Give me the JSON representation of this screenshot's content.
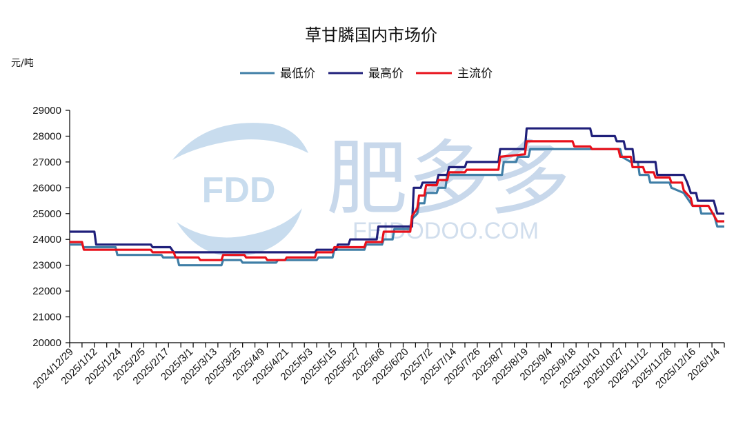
{
  "chart_data": {
    "type": "line",
    "title": "草甘膦国内市场价",
    "unit_label": "元/吨",
    "ylim": [
      20000,
      29000
    ],
    "yticks": [
      20000,
      21000,
      22000,
      23000,
      24000,
      25000,
      26000,
      27000,
      28000,
      29000
    ],
    "x_start": "2024-12-29",
    "x_end": "2026-01-04",
    "xticks": [
      "2024/12/29",
      "2025/1/12",
      "2025/1/24",
      "2025/2/5",
      "2025/2/17",
      "2025/3/1",
      "2025/3/13",
      "2025/3/25",
      "2025/4/9",
      "2025/4/21",
      "2025/5/3",
      "2025/5/15",
      "2025/5/27",
      "2025/6/8",
      "2025/6/20",
      "2025/7/2",
      "2025/7/14",
      "2025/7/26",
      "2025/8/7",
      "2025/8/19",
      "2025/9/4",
      "2025/9/18",
      "2025/10/10",
      "2025/10/27",
      "2025/11/12",
      "2025/11/28",
      "2025/12/16",
      "2026/1/4"
    ],
    "legend_position": "top-center",
    "grid": false,
    "watermark": {
      "logo_text": "FDD",
      "brand": "肥多多",
      "site": "FEIDODOO.COM"
    },
    "series": [
      {
        "name": "最低价",
        "color": "#3F7EA6",
        "points": [
          [
            "2024-12-29",
            23800
          ],
          [
            "2025-01-05",
            23800
          ],
          [
            "2025-01-06",
            23700
          ],
          [
            "2025-01-24",
            23700
          ],
          [
            "2025-01-25",
            23400
          ],
          [
            "2025-02-19",
            23400
          ],
          [
            "2025-02-20",
            23300
          ],
          [
            "2025-02-28",
            23300
          ],
          [
            "2025-03-01",
            23000
          ],
          [
            "2025-03-25",
            23000
          ],
          [
            "2025-03-26",
            23200
          ],
          [
            "2025-04-05",
            23200
          ],
          [
            "2025-04-06",
            23100
          ],
          [
            "2025-04-25",
            23100
          ],
          [
            "2025-04-26",
            23200
          ],
          [
            "2025-05-18",
            23200
          ],
          [
            "2025-05-19",
            23300
          ],
          [
            "2025-05-27",
            23300
          ],
          [
            "2025-05-28",
            23600
          ],
          [
            "2025-06-14",
            23600
          ],
          [
            "2025-06-15",
            23800
          ],
          [
            "2025-06-24",
            23800
          ],
          [
            "2025-06-25",
            24000
          ],
          [
            "2025-06-30",
            24000
          ],
          [
            "2025-07-01",
            24400
          ],
          [
            "2025-07-10",
            24400
          ],
          [
            "2025-07-11",
            24800
          ],
          [
            "2025-07-14",
            25000
          ],
          [
            "2025-07-15",
            25400
          ],
          [
            "2025-07-18",
            25400
          ],
          [
            "2025-07-19",
            25800
          ],
          [
            "2025-07-25",
            25800
          ],
          [
            "2025-07-26",
            26000
          ],
          [
            "2025-07-30",
            26000
          ],
          [
            "2025-07-31",
            26500
          ],
          [
            "2025-08-31",
            26500
          ],
          [
            "2025-09-01",
            27000
          ],
          [
            "2025-09-08",
            27000
          ],
          [
            "2025-09-09",
            27200
          ],
          [
            "2025-09-15",
            27200
          ],
          [
            "2025-09-16",
            27500
          ],
          [
            "2025-11-06",
            27500
          ],
          [
            "2025-11-07",
            27200
          ],
          [
            "2025-11-12",
            27000
          ],
          [
            "2025-11-16",
            27000
          ],
          [
            "2025-11-17",
            26500
          ],
          [
            "2025-11-22",
            26500
          ],
          [
            "2025-11-23",
            26200
          ],
          [
            "2025-12-04",
            26200
          ],
          [
            "2025-12-05",
            26000
          ],
          [
            "2025-12-12",
            25800
          ],
          [
            "2025-12-17",
            25300
          ],
          [
            "2025-12-21",
            25300
          ],
          [
            "2025-12-22",
            25000
          ],
          [
            "2025-12-29",
            25000
          ],
          [
            "2025-12-31",
            24500
          ],
          [
            "2026-01-04",
            24500
          ]
        ]
      },
      {
        "name": "最高价",
        "color": "#1F1F7A",
        "points": [
          [
            "2024-12-29",
            24300
          ],
          [
            "2025-01-12",
            24300
          ],
          [
            "2025-01-13",
            23800
          ],
          [
            "2025-02-13",
            23800
          ],
          [
            "2025-02-14",
            23700
          ],
          [
            "2025-02-24",
            23700
          ],
          [
            "2025-02-26",
            23500
          ],
          [
            "2025-05-17",
            23500
          ],
          [
            "2025-05-18",
            23600
          ],
          [
            "2025-05-29",
            23600
          ],
          [
            "2025-05-30",
            23800
          ],
          [
            "2025-06-05",
            23800
          ],
          [
            "2025-06-06",
            24000
          ],
          [
            "2025-06-21",
            24000
          ],
          [
            "2025-06-22",
            24500
          ],
          [
            "2025-07-11",
            24500
          ],
          [
            "2025-07-12",
            26000
          ],
          [
            "2025-07-16",
            26000
          ],
          [
            "2025-07-17",
            26200
          ],
          [
            "2025-07-25",
            26200
          ],
          [
            "2025-07-26",
            26500
          ],
          [
            "2025-07-31",
            26500
          ],
          [
            "2025-08-01",
            26800
          ],
          [
            "2025-08-10",
            26800
          ],
          [
            "2025-08-11",
            27000
          ],
          [
            "2025-08-29",
            27000
          ],
          [
            "2025-08-30",
            27500
          ],
          [
            "2025-09-13",
            27500
          ],
          [
            "2025-09-14",
            28300
          ],
          [
            "2025-10-20",
            28300
          ],
          [
            "2025-10-21",
            28000
          ],
          [
            "2025-11-03",
            28000
          ],
          [
            "2025-11-04",
            27800
          ],
          [
            "2025-11-08",
            27800
          ],
          [
            "2025-11-09",
            27500
          ],
          [
            "2025-11-13",
            27500
          ],
          [
            "2025-11-14",
            27000
          ],
          [
            "2025-11-26",
            27000
          ],
          [
            "2025-11-27",
            26500
          ],
          [
            "2025-12-12",
            26500
          ],
          [
            "2025-12-14",
            26200
          ],
          [
            "2025-12-16",
            25800
          ],
          [
            "2025-12-19",
            25800
          ],
          [
            "2025-12-20",
            25500
          ],
          [
            "2025-12-29",
            25500
          ],
          [
            "2025-12-31",
            25000
          ],
          [
            "2026-01-04",
            25000
          ]
        ]
      },
      {
        "name": "主流价",
        "color": "#E8101A",
        "points": [
          [
            "2024-12-29",
            23900
          ],
          [
            "2025-01-05",
            23900
          ],
          [
            "2025-01-06",
            23600
          ],
          [
            "2025-02-13",
            23600
          ],
          [
            "2025-02-14",
            23500
          ],
          [
            "2025-02-26",
            23500
          ],
          [
            "2025-02-27",
            23300
          ],
          [
            "2025-03-12",
            23300
          ],
          [
            "2025-03-13",
            23200
          ],
          [
            "2025-03-25",
            23200
          ],
          [
            "2025-03-26",
            23400
          ],
          [
            "2025-04-07",
            23400
          ],
          [
            "2025-04-08",
            23300
          ],
          [
            "2025-04-19",
            23300
          ],
          [
            "2025-04-20",
            23200
          ],
          [
            "2025-04-30",
            23200
          ],
          [
            "2025-05-01",
            23300
          ],
          [
            "2025-05-17",
            23300
          ],
          [
            "2025-05-18",
            23500
          ],
          [
            "2025-05-27",
            23500
          ],
          [
            "2025-05-28",
            23700
          ],
          [
            "2025-06-14",
            23700
          ],
          [
            "2025-06-15",
            23900
          ],
          [
            "2025-06-24",
            23900
          ],
          [
            "2025-06-25",
            24300
          ],
          [
            "2025-07-10",
            24300
          ],
          [
            "2025-07-11",
            24900
          ],
          [
            "2025-07-14",
            25200
          ],
          [
            "2025-07-15",
            25700
          ],
          [
            "2025-07-18",
            25700
          ],
          [
            "2025-07-19",
            26100
          ],
          [
            "2025-07-25",
            26100
          ],
          [
            "2025-07-26",
            26300
          ],
          [
            "2025-07-31",
            26300
          ],
          [
            "2025-08-01",
            26600
          ],
          [
            "2025-08-10",
            26600
          ],
          [
            "2025-08-11",
            26700
          ],
          [
            "2025-08-29",
            26700
          ],
          [
            "2025-08-30",
            27200
          ],
          [
            "2025-09-13",
            27300
          ],
          [
            "2025-09-14",
            27800
          ],
          [
            "2025-10-10",
            27800
          ],
          [
            "2025-10-11",
            27600
          ],
          [
            "2025-10-20",
            27600
          ],
          [
            "2025-10-21",
            27500
          ],
          [
            "2025-11-05",
            27500
          ],
          [
            "2025-11-06",
            27200
          ],
          [
            "2025-11-12",
            27200
          ],
          [
            "2025-11-13",
            26800
          ],
          [
            "2025-11-19",
            26800
          ],
          [
            "2025-11-20",
            26600
          ],
          [
            "2025-11-25",
            26600
          ],
          [
            "2025-11-26",
            26400
          ],
          [
            "2025-12-04",
            26400
          ],
          [
            "2025-12-05",
            26200
          ],
          [
            "2025-12-11",
            26200
          ],
          [
            "2025-12-12",
            25900
          ],
          [
            "2025-12-16",
            25600
          ],
          [
            "2025-12-17",
            25300
          ],
          [
            "2025-12-26",
            25300
          ],
          [
            "2025-12-31",
            24700
          ],
          [
            "2026-01-04",
            24700
          ]
        ]
      }
    ]
  }
}
